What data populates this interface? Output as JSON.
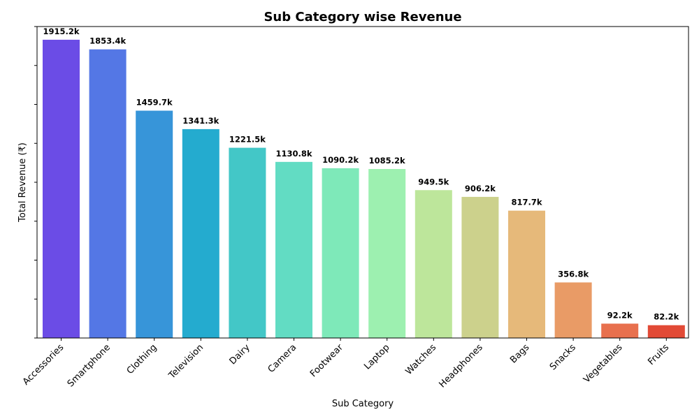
{
  "chart_data": {
    "type": "bar",
    "title": "Sub Category wise Revenue",
    "xlabel": "Sub Category",
    "ylabel": "Total Revenue (₹)",
    "categories": [
      "Accessories",
      "Smartphone",
      "Clothing",
      "Television",
      "Dairy",
      "Camera",
      "Footwear",
      "Laptop",
      "Watches",
      "Headphones",
      "Bags",
      "Snacks",
      "Vegetables",
      "Fruits"
    ],
    "values": [
      1915.2,
      1853.4,
      1459.7,
      1341.3,
      1221.5,
      1130.8,
      1090.2,
      1085.2,
      949.5,
      906.2,
      817.7,
      356.8,
      92.2,
      82.2
    ],
    "value_unit": "k",
    "data_labels": [
      "1915.2k",
      "1853.4k",
      "1459.7k",
      "1341.3k",
      "1221.5k",
      "1130.8k",
      "1090.2k",
      "1085.2k",
      "949.5k",
      "906.2k",
      "817.7k",
      "356.8k",
      "92.2k",
      "82.2k"
    ],
    "colors": [
      "#6b4ce6",
      "#5477e5",
      "#3795d9",
      "#24abcf",
      "#43c7c7",
      "#62dcc3",
      "#7ee9b9",
      "#9df0b0",
      "#bde69b",
      "#ccd18c",
      "#e6b97a",
      "#e99b66",
      "#e8704e",
      "#e24a36"
    ],
    "ylim": [
      0,
      2000
    ],
    "ytick_labels_shown": false,
    "grid": false,
    "legend": "none"
  }
}
